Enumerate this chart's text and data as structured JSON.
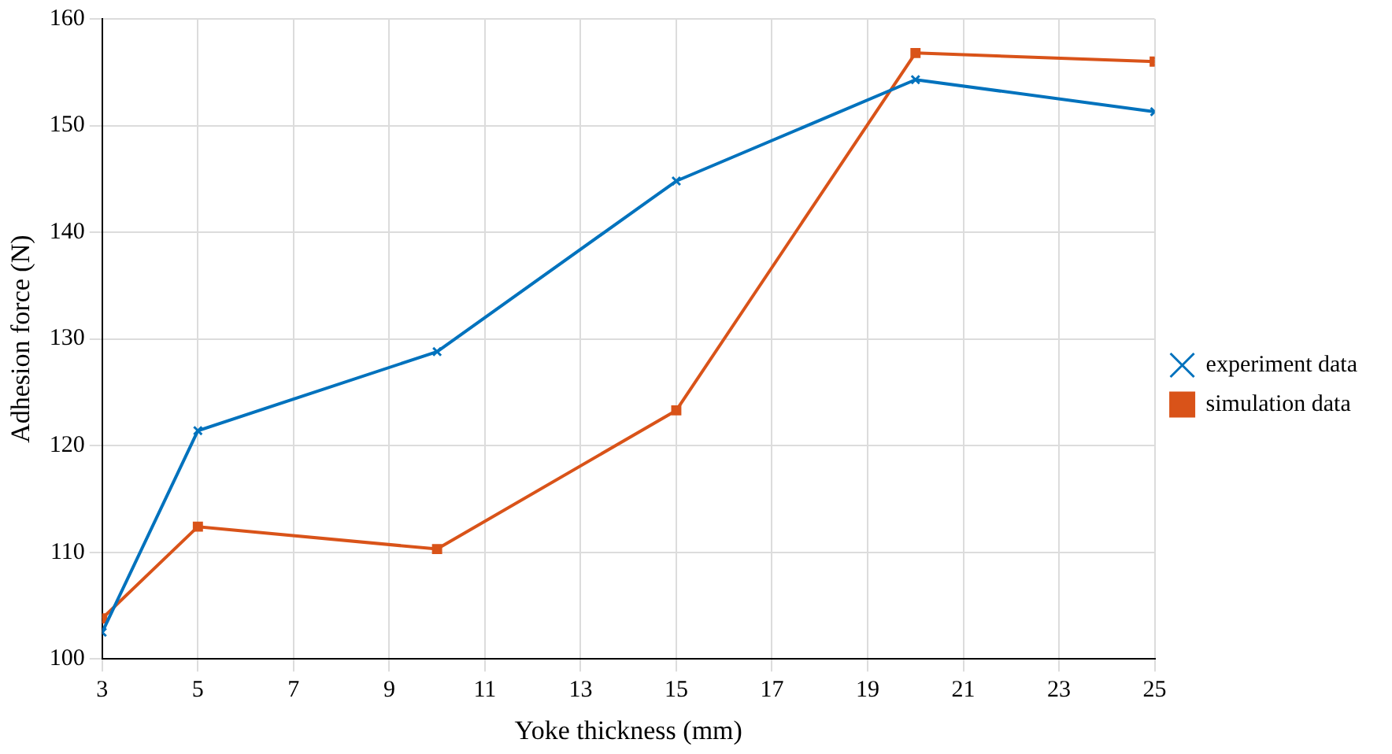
{
  "chart_data": {
    "type": "line",
    "xlabel": "Yoke thickness (mm)",
    "ylabel": "Adhesion force (N)",
    "x": [
      3,
      5,
      10,
      15,
      20,
      25
    ],
    "series": [
      {
        "name": "experiment data",
        "color": "#0072bd",
        "values": [
          102.5,
          121.4,
          128.8,
          144.8,
          154.3,
          151.3
        ],
        "marker": "cross"
      },
      {
        "name": "simulation data",
        "color": "#d95319",
        "values": [
          103.8,
          112.4,
          110.3,
          123.3,
          156.8,
          156.0
        ],
        "marker": "square"
      }
    ],
    "xlim": [
      3,
      25
    ],
    "xticks": [
      3,
      5,
      7,
      9,
      11,
      13,
      15,
      17,
      19,
      21,
      23,
      25
    ],
    "ylim": [
      100,
      160
    ],
    "yticks": [
      100,
      110,
      120,
      130,
      140,
      150,
      160
    ],
    "grid": true,
    "legend": "right",
    "line_style": "solid"
  }
}
